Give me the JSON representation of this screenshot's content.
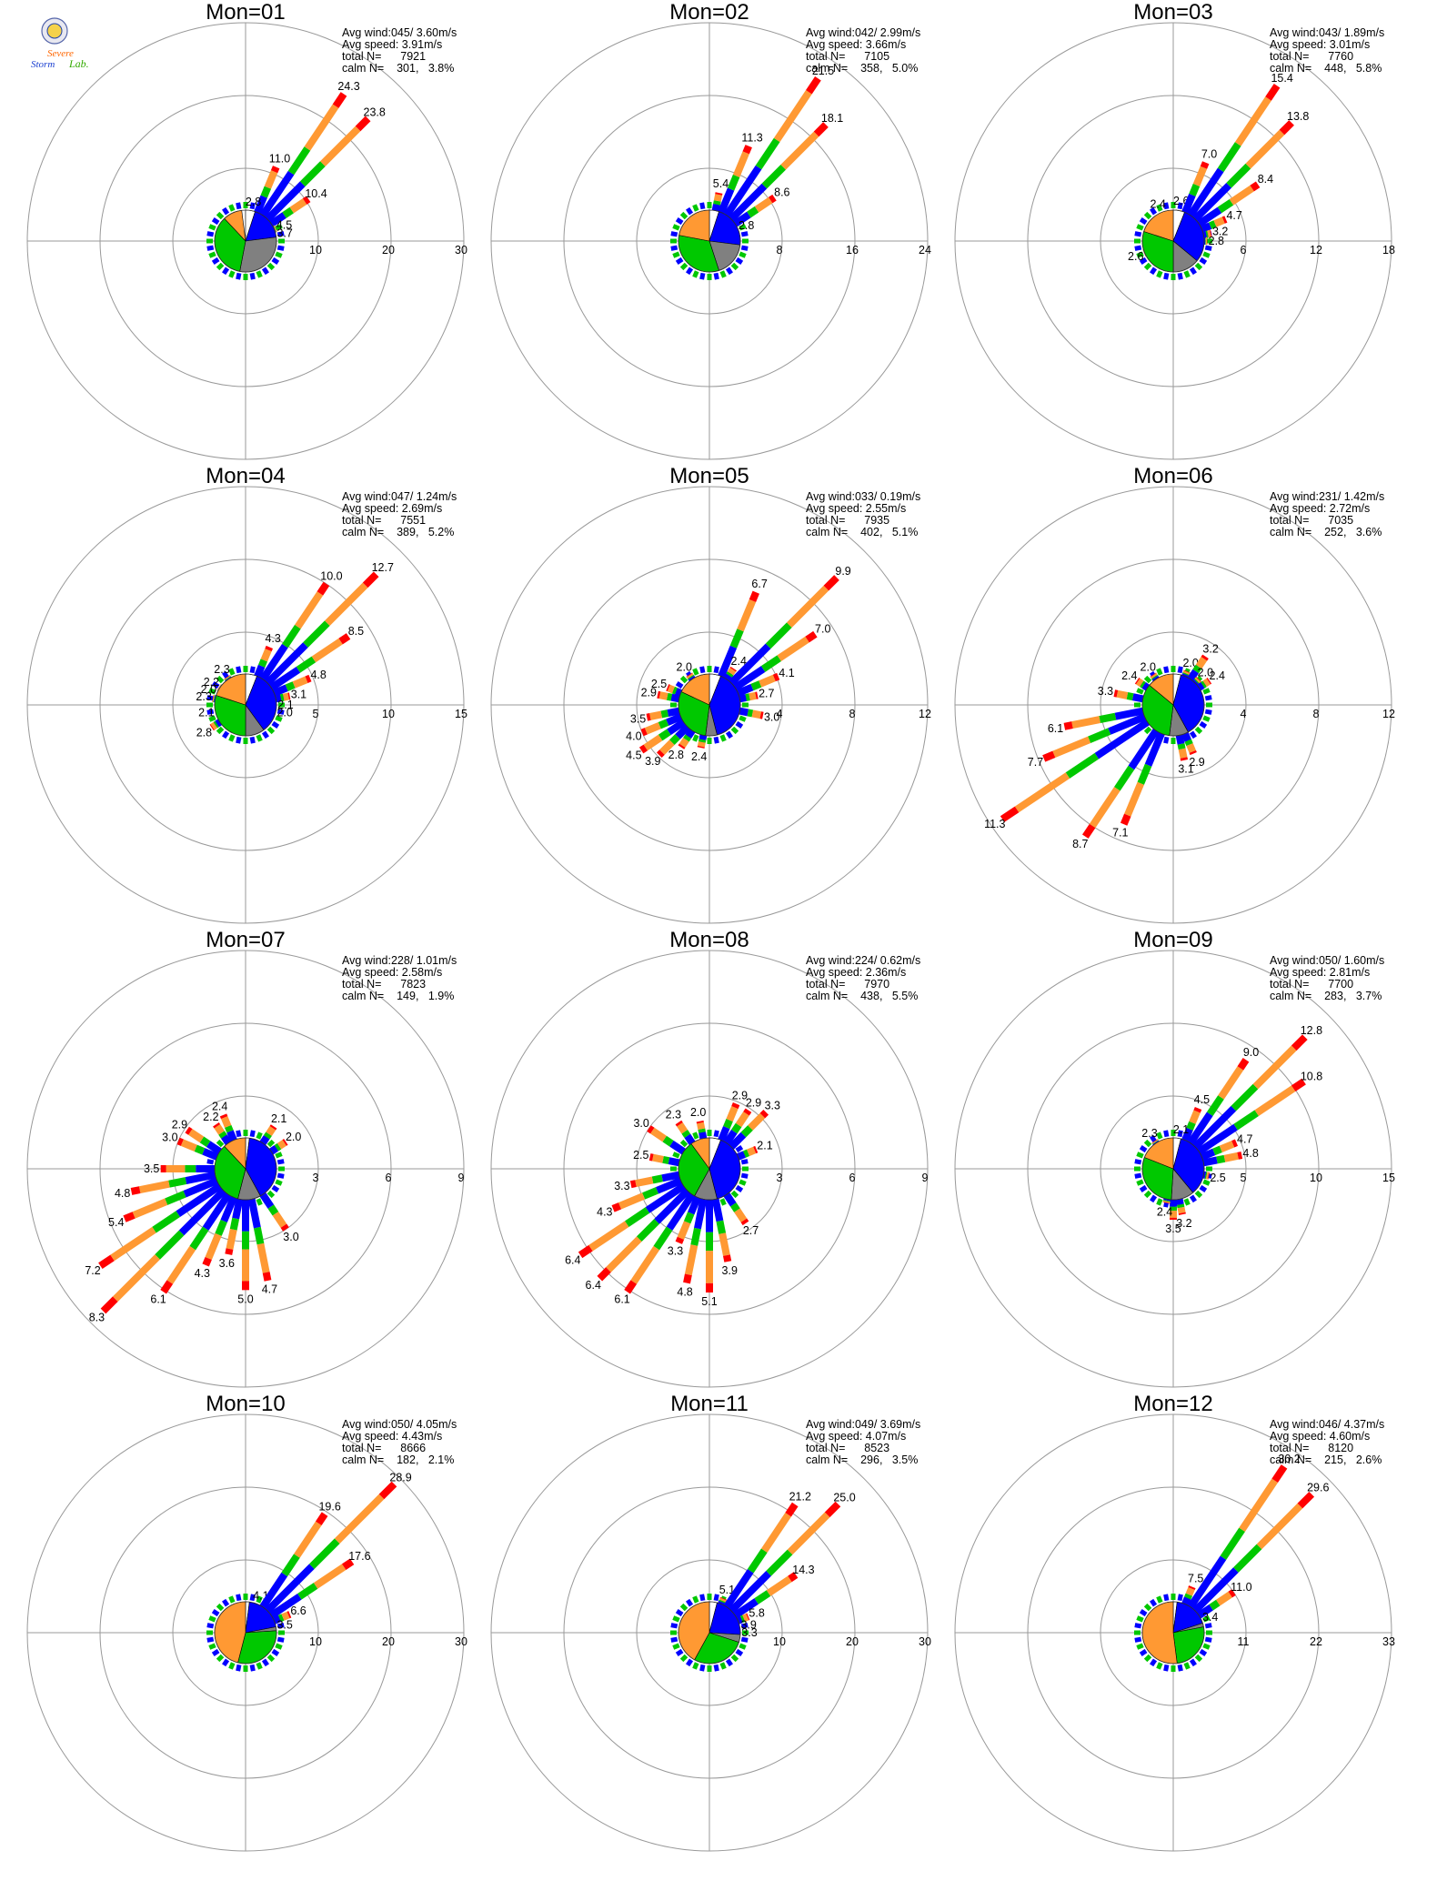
{
  "logo": {
    "text_line1": "Severe",
    "text_line2": "Storm",
    "text_line3": "Lab."
  },
  "colors": {
    "calm": "#ffffff",
    "speed1": "#0000ff",
    "speed2": "#808080",
    "speed3": "#00c800",
    "speed4": "#ff9933",
    "speed5": "#ff0000",
    "grid": "#999999"
  },
  "stats_labels": {
    "avg_wind": "Avg wind:",
    "avg_speed": "Avg speed:",
    "total_n": "total N=",
    "calm_n": "calm N="
  },
  "chart_data": [
    {
      "type": "polar-windrose",
      "title": "Mon=01",
      "avg_wind": "045/ 3.60m/s",
      "avg_speed": "3.91m/s",
      "total_n": "7921",
      "calm_n": "301,",
      "calm_pct": "3.8%",
      "rings": [
        10,
        20,
        30
      ],
      "rmax": 30,
      "petals": [
        {
          "dir": 22.5,
          "pct": 11.0,
          "label": "11.0"
        },
        {
          "dir": 33.75,
          "pct": 24.3,
          "label": "24.3"
        },
        {
          "dir": 45,
          "pct": 23.8,
          "label": "23.8"
        },
        {
          "dir": 56.25,
          "pct": 10.4,
          "label": "10.4"
        },
        {
          "dir": 67.5,
          "pct": 4.5,
          "label": "4.5"
        },
        {
          "dir": 78.75,
          "pct": 3.7,
          "label": "3.7"
        },
        {
          "dir": 11.25,
          "pct": 2.8,
          "label": "2.8"
        }
      ],
      "pie": [
        0.05,
        0.18,
        0.3,
        0.35,
        0.1
      ]
    },
    {
      "type": "polar-windrose",
      "title": "Mon=02",
      "avg_wind": "042/ 2.99m/s",
      "avg_speed": "3.66m/s",
      "total_n": "7105",
      "calm_n": "358,",
      "calm_pct": "5.0%",
      "rings": [
        8,
        16,
        24
      ],
      "rmax": 24,
      "petals": [
        {
          "dir": 11.25,
          "pct": 5.4,
          "label": "5.4"
        },
        {
          "dir": 22.5,
          "pct": 11.3,
          "label": "11.3"
        },
        {
          "dir": 33.75,
          "pct": 21.5,
          "label": "21.5"
        },
        {
          "dir": 45,
          "pct": 18.1,
          "label": "18.1"
        },
        {
          "dir": 56.25,
          "pct": 8.6,
          "label": "8.6"
        },
        {
          "dir": 67.5,
          "pct": 2.8,
          "label": "2.8"
        }
      ],
      "pie": [
        0.05,
        0.22,
        0.18,
        0.33,
        0.22
      ]
    },
    {
      "type": "polar-windrose",
      "title": "Mon=03",
      "avg_wind": "043/ 1.89m/s",
      "avg_speed": "3.01m/s",
      "total_n": "7760",
      "calm_n": "448,",
      "calm_pct": "5.8%",
      "rings": [
        6,
        12,
        18
      ],
      "rmax": 18,
      "petals": [
        {
          "dir": 337.5,
          "pct": 2.4,
          "label": "2.4"
        },
        {
          "dir": 11.25,
          "pct": 2.6,
          "label": "2.6"
        },
        {
          "dir": 22.5,
          "pct": 7.0,
          "label": "7.0"
        },
        {
          "dir": 33.75,
          "pct": 15.4,
          "label": "15.4"
        },
        {
          "dir": 45,
          "pct": 13.8,
          "label": "13.8"
        },
        {
          "dir": 56.25,
          "pct": 8.4,
          "label": "8.4"
        },
        {
          "dir": 67.5,
          "pct": 4.7,
          "label": "4.7"
        },
        {
          "dir": 78.75,
          "pct": 3.2,
          "label": "3.2"
        },
        {
          "dir": 90,
          "pct": 2.8,
          "label": "2.8"
        },
        {
          "dir": 247.5,
          "pct": 2.6,
          "label": "2.6"
        }
      ],
      "pie": [
        0.06,
        0.3,
        0.14,
        0.3,
        0.2
      ]
    },
    {
      "type": "polar-windrose",
      "title": "Mon=04",
      "avg_wind": "047/ 1.24m/s",
      "avg_speed": "2.69m/s",
      "total_n": "7551",
      "calm_n": "389,",
      "calm_pct": "5.2%",
      "rings": [
        5,
        10,
        15
      ],
      "rmax": 15,
      "petals": [
        {
          "dir": 22.5,
          "pct": 4.3,
          "label": "4.3"
        },
        {
          "dir": 33.75,
          "pct": 10.0,
          "label": "10.0"
        },
        {
          "dir": 45,
          "pct": 12.7,
          "label": "12.7"
        },
        {
          "dir": 56.25,
          "pct": 8.5,
          "label": "8.5"
        },
        {
          "dir": 67.5,
          "pct": 4.8,
          "label": "4.8"
        },
        {
          "dir": 78.75,
          "pct": 3.1,
          "label": "3.1"
        },
        {
          "dir": 90,
          "pct": 2.1,
          "label": "2.1"
        },
        {
          "dir": 101.25,
          "pct": 2.0,
          "label": "2.0"
        },
        {
          "dir": 326.25,
          "pct": 2.3,
          "label": "2.3"
        },
        {
          "dir": 303.75,
          "pct": 2.2,
          "label": "2.2"
        },
        {
          "dir": 292.5,
          "pct": 2.0,
          "label": "2.0"
        },
        {
          "dir": 281.25,
          "pct": 2.3,
          "label": "2.3"
        },
        {
          "dir": 258.75,
          "pct": 2.1,
          "label": "2.1"
        },
        {
          "dir": 236.25,
          "pct": 2.8,
          "label": "2.8"
        }
      ],
      "pie": [
        0.06,
        0.34,
        0.1,
        0.3,
        0.2
      ]
    },
    {
      "type": "polar-windrose",
      "title": "Mon=05",
      "avg_wind": "033/ 0.19m/s",
      "avg_speed": "2.55m/s",
      "total_n": "7935",
      "calm_n": "402,",
      "calm_pct": "5.1%",
      "rings": [
        4,
        8,
        12
      ],
      "rmax": 12,
      "petals": [
        {
          "dir": 22.5,
          "pct": 6.7,
          "label": "6.7"
        },
        {
          "dir": 33.75,
          "pct": 2.4,
          "label": "2.4"
        },
        {
          "dir": 45,
          "pct": 9.9,
          "label": "9.9"
        },
        {
          "dir": 56.25,
          "pct": 7.0,
          "label": "7.0"
        },
        {
          "dir": 67.5,
          "pct": 4.1,
          "label": "4.1"
        },
        {
          "dir": 78.75,
          "pct": 2.7,
          "label": "2.7"
        },
        {
          "dir": 101.25,
          "pct": 3.0,
          "label": "3.0"
        },
        {
          "dir": 326.25,
          "pct": 2.0,
          "label": "2.0"
        },
        {
          "dir": 292.5,
          "pct": 2.5,
          "label": "2.5"
        },
        {
          "dir": 281.25,
          "pct": 2.9,
          "label": "2.9"
        },
        {
          "dir": 258.75,
          "pct": 3.5,
          "label": "3.5"
        },
        {
          "dir": 247.5,
          "pct": 4.0,
          "label": "4.0"
        },
        {
          "dir": 236.25,
          "pct": 4.5,
          "label": "4.5"
        },
        {
          "dir": 225,
          "pct": 3.9,
          "label": "3.9"
        },
        {
          "dir": 213.75,
          "pct": 2.8,
          "label": "2.8"
        },
        {
          "dir": 191.25,
          "pct": 2.4,
          "label": "2.4"
        }
      ],
      "pie": [
        0.06,
        0.4,
        0.06,
        0.3,
        0.18
      ]
    },
    {
      "type": "polar-windrose",
      "title": "Mon=06",
      "avg_wind": "231/ 1.42m/s",
      "avg_speed": "2.72m/s",
      "total_n": "7035",
      "calm_n": "252,",
      "calm_pct": "3.6%",
      "rings": [
        4,
        8,
        12
      ],
      "rmax": 12,
      "petals": [
        {
          "dir": 22.5,
          "pct": 2.0,
          "label": "2.0"
        },
        {
          "dir": 33.75,
          "pct": 3.2,
          "label": "3.2"
        },
        {
          "dir": 45,
          "pct": 2.0,
          "label": "2.0"
        },
        {
          "dir": 56.25,
          "pct": 2.4,
          "label": "2.4"
        },
        {
          "dir": 326.25,
          "pct": 2.0,
          "label": "2.0"
        },
        {
          "dir": 303.75,
          "pct": 2.4,
          "label": "2.4"
        },
        {
          "dir": 281.25,
          "pct": 3.3,
          "label": "3.3"
        },
        {
          "dir": 258.75,
          "pct": 6.1,
          "label": "6.1"
        },
        {
          "dir": 247.5,
          "pct": 7.7,
          "label": "7.7"
        },
        {
          "dir": 236.25,
          "pct": 11.3,
          "label": "11.3"
        },
        {
          "dir": 213.75,
          "pct": 8.7,
          "label": "8.7"
        },
        {
          "dir": 202.5,
          "pct": 7.1,
          "label": "7.1"
        },
        {
          "dir": 168.75,
          "pct": 3.1,
          "label": "3.1"
        },
        {
          "dir": 157.5,
          "pct": 2.9,
          "label": "2.9"
        }
      ],
      "pie": [
        0.04,
        0.38,
        0.1,
        0.34,
        0.14
      ]
    },
    {
      "type": "polar-windrose",
      "title": "Mon=07",
      "avg_wind": "228/ 1.01m/s",
      "avg_speed": "2.58m/s",
      "total_n": "7823",
      "calm_n": "149,",
      "calm_pct": "1.9%",
      "rings": [
        3,
        6,
        9
      ],
      "rmax": 9,
      "petals": [
        {
          "dir": 33.75,
          "pct": 2.1,
          "label": "2.1"
        },
        {
          "dir": 56.25,
          "pct": 2.0,
          "label": "2.0"
        },
        {
          "dir": 337.5,
          "pct": 2.4,
          "label": "2.4"
        },
        {
          "dir": 326.25,
          "pct": 2.2,
          "label": "2.2"
        },
        {
          "dir": 303.75,
          "pct": 2.9,
          "label": "2.9"
        },
        {
          "dir": 292.5,
          "pct": 3.0,
          "label": "3.0"
        },
        {
          "dir": 270,
          "pct": 3.5,
          "label": "3.5"
        },
        {
          "dir": 258.75,
          "pct": 4.8,
          "label": "4.8"
        },
        {
          "dir": 247.5,
          "pct": 5.4,
          "label": "5.4"
        },
        {
          "dir": 236.25,
          "pct": 7.2,
          "label": "7.2"
        },
        {
          "dir": 225,
          "pct": 8.3,
          "label": "8.3"
        },
        {
          "dir": 213.75,
          "pct": 6.1,
          "label": "6.1"
        },
        {
          "dir": 202.5,
          "pct": 4.3,
          "label": "4.3"
        },
        {
          "dir": 191.25,
          "pct": 3.6,
          "label": "3.6"
        },
        {
          "dir": 180,
          "pct": 5.0,
          "label": "5.0"
        },
        {
          "dir": 168.75,
          "pct": 4.7,
          "label": "4.7"
        },
        {
          "dir": 146.25,
          "pct": 3.0,
          "label": "3.0"
        }
      ],
      "pie": [
        0.02,
        0.4,
        0.12,
        0.34,
        0.12
      ]
    },
    {
      "type": "polar-windrose",
      "title": "Mon=08",
      "avg_wind": "224/ 0.62m/s",
      "avg_speed": "2.36m/s",
      "total_n": "7970",
      "calm_n": "438,",
      "calm_pct": "5.5%",
      "rings": [
        3,
        6,
        9
      ],
      "rmax": 9,
      "petals": [
        {
          "dir": 22.5,
          "pct": 2.9,
          "label": "2.9"
        },
        {
          "dir": 33.75,
          "pct": 2.9,
          "label": "2.9"
        },
        {
          "dir": 45,
          "pct": 3.3,
          "label": "3.3"
        },
        {
          "dir": 67.5,
          "pct": 2.1,
          "label": "2.1"
        },
        {
          "dir": 348.75,
          "pct": 2.0,
          "label": "2.0"
        },
        {
          "dir": 326.25,
          "pct": 2.3,
          "label": "2.3"
        },
        {
          "dir": 303.75,
          "pct": 3.0,
          "label": "3.0"
        },
        {
          "dir": 281.25,
          "pct": 2.5,
          "label": "2.5"
        },
        {
          "dir": 258.75,
          "pct": 3.3,
          "label": "3.3"
        },
        {
          "dir": 247.5,
          "pct": 4.3,
          "label": "4.3"
        },
        {
          "dir": 236.25,
          "pct": 6.4,
          "label": "6.4"
        },
        {
          "dir": 225,
          "pct": 6.4,
          "label": "6.4"
        },
        {
          "dir": 213.75,
          "pct": 6.1,
          "label": "6.1"
        },
        {
          "dir": 202.5,
          "pct": 3.3,
          "label": "3.3"
        },
        {
          "dir": 191.25,
          "pct": 4.8,
          "label": "4.8"
        },
        {
          "dir": 180,
          "pct": 5.1,
          "label": "5.1"
        },
        {
          "dir": 168.75,
          "pct": 3.9,
          "label": "3.9"
        },
        {
          "dir": 146.25,
          "pct": 2.7,
          "label": "2.7"
        }
      ],
      "pie": [
        0.06,
        0.4,
        0.12,
        0.32,
        0.1
      ]
    },
    {
      "type": "polar-windrose",
      "title": "Mon=09",
      "avg_wind": "050/ 1.60m/s",
      "avg_speed": "2.81m/s",
      "total_n": "7700",
      "calm_n": "283,",
      "calm_pct": "3.7%",
      "rings": [
        5,
        10,
        15
      ],
      "rmax": 15,
      "petals": [
        {
          "dir": 22.5,
          "pct": 4.5,
          "label": "4.5"
        },
        {
          "dir": 33.75,
          "pct": 9.0,
          "label": "9.0"
        },
        {
          "dir": 45,
          "pct": 12.8,
          "label": "12.8"
        },
        {
          "dir": 56.25,
          "pct": 10.8,
          "label": "10.8"
        },
        {
          "dir": 11.25,
          "pct": 2.1,
          "label": "2.1"
        },
        {
          "dir": 67.5,
          "pct": 4.7,
          "label": "4.7"
        },
        {
          "dir": 78.75,
          "pct": 4.8,
          "label": "4.8"
        },
        {
          "dir": 101.25,
          "pct": 2.5,
          "label": "2.5"
        },
        {
          "dir": 326.25,
          "pct": 2.3,
          "label": "2.3"
        },
        {
          "dir": 168.75,
          "pct": 3.2,
          "label": "3.2"
        },
        {
          "dir": 180,
          "pct": 3.5,
          "label": "3.5"
        },
        {
          "dir": 191.25,
          "pct": 2.4,
          "label": "2.4"
        }
      ],
      "pie": [
        0.04,
        0.35,
        0.12,
        0.3,
        0.19
      ]
    },
    {
      "type": "polar-windrose",
      "title": "Mon=10",
      "avg_wind": "050/ 4.05m/s",
      "avg_speed": "4.43m/s",
      "total_n": "8666",
      "calm_n": "182,",
      "calm_pct": "2.1%",
      "rings": [
        10,
        20,
        30
      ],
      "rmax": 30,
      "petals": [
        {
          "dir": 22.5,
          "pct": 4.1,
          "label": "4.1"
        },
        {
          "dir": 33.75,
          "pct": 19.6,
          "label": "19.6"
        },
        {
          "dir": 45,
          "pct": 28.9,
          "label": "28.9"
        },
        {
          "dir": 56.25,
          "pct": 17.6,
          "label": "17.6"
        },
        {
          "dir": 67.5,
          "pct": 6.6,
          "label": "6.6"
        },
        {
          "dir": 78.75,
          "pct": 3.5,
          "label": "3.5"
        }
      ],
      "pie": [
        0.02,
        0.2,
        0.02,
        0.3,
        0.46
      ]
    },
    {
      "type": "polar-windrose",
      "title": "Mon=11",
      "avg_wind": "049/ 3.69m/s",
      "avg_speed": "4.07m/s",
      "total_n": "8523",
      "calm_n": "296,",
      "calm_pct": "3.5%",
      "rings": [
        10,
        20,
        30
      ],
      "rmax": 30,
      "petals": [
        {
          "dir": 22.5,
          "pct": 5.1,
          "label": "5.1"
        },
        {
          "dir": 33.75,
          "pct": 21.2,
          "label": "21.2"
        },
        {
          "dir": 45,
          "pct": 25.0,
          "label": "25.0"
        },
        {
          "dir": 56.25,
          "pct": 14.3,
          "label": "14.3"
        },
        {
          "dir": 67.5,
          "pct": 5.8,
          "label": "5.8"
        },
        {
          "dir": 78.75,
          "pct": 3.9,
          "label": "3.9"
        },
        {
          "dir": 90,
          "pct": 3.3,
          "label": "3.3"
        }
      ],
      "pie": [
        0.04,
        0.22,
        0.04,
        0.28,
        0.42
      ]
    },
    {
      "type": "polar-windrose",
      "title": "Mon=12",
      "avg_wind": "046/ 4.37m/s",
      "avg_speed": "4.60m/s",
      "total_n": "8120",
      "calm_n": "215,",
      "calm_pct": "2.6%",
      "rings": [
        11,
        22,
        33
      ],
      "rmax": 33,
      "petals": [
        {
          "dir": 22.5,
          "pct": 7.5,
          "label": "7.5"
        },
        {
          "dir": 33.75,
          "pct": 30.2,
          "label": "30.2"
        },
        {
          "dir": 45,
          "pct": 29.6,
          "label": "29.6"
        },
        {
          "dir": 56.25,
          "pct": 11.0,
          "label": "11.0"
        },
        {
          "dir": 67.5,
          "pct": 3.4,
          "label": "3.4"
        }
      ],
      "pie": [
        0.02,
        0.18,
        0.02,
        0.26,
        0.52
      ]
    }
  ]
}
